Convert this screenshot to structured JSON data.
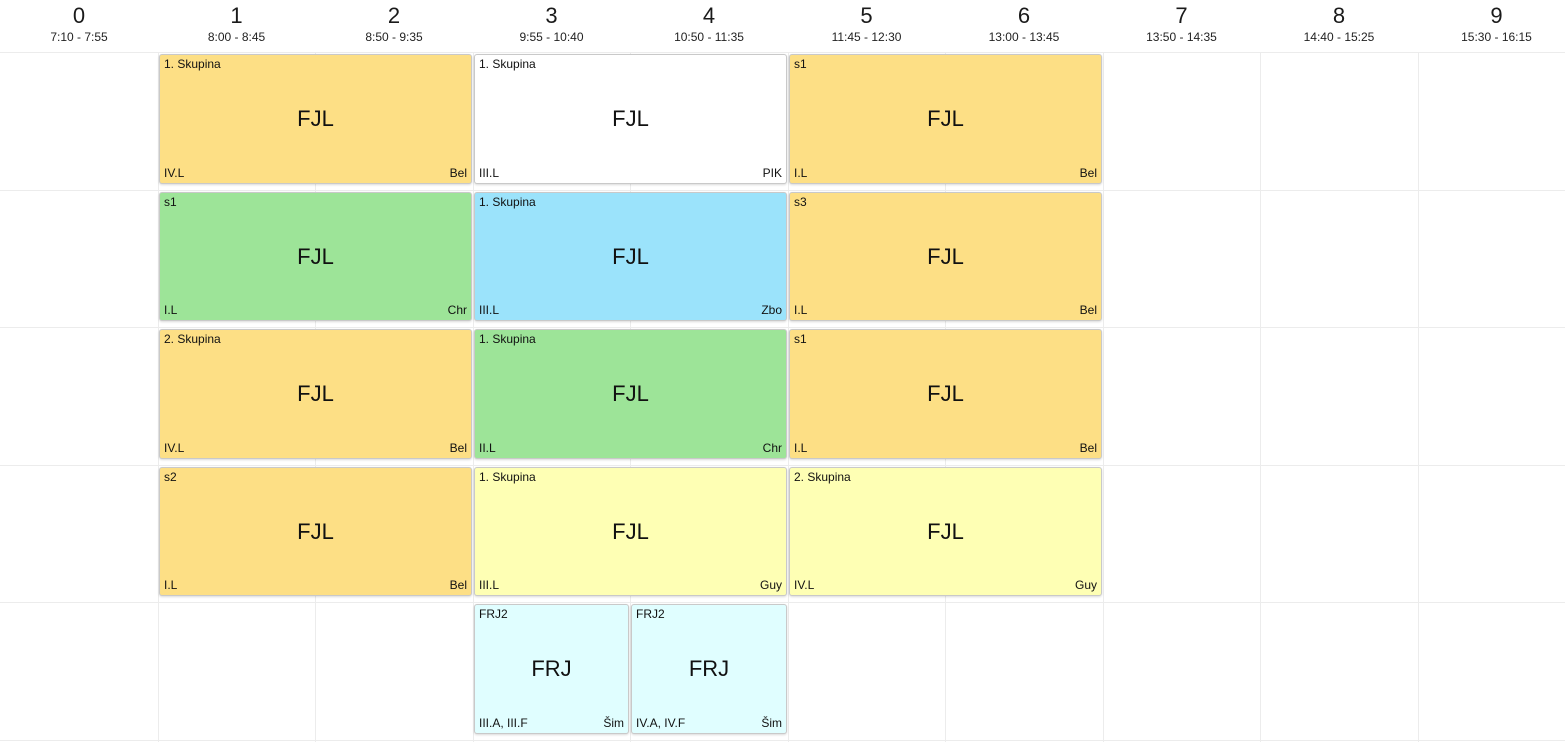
{
  "periods": [
    {
      "num": "0",
      "time": "7:10 - 7:55"
    },
    {
      "num": "1",
      "time": "8:00 - 8:45"
    },
    {
      "num": "2",
      "time": "8:50 - 9:35"
    },
    {
      "num": "3",
      "time": "9:55 - 10:40"
    },
    {
      "num": "4",
      "time": "10:50 - 11:35"
    },
    {
      "num": "5",
      "time": "11:45 - 12:30"
    },
    {
      "num": "6",
      "time": "13:00 - 13:45"
    },
    {
      "num": "7",
      "time": "13:50 - 14:35"
    },
    {
      "num": "8",
      "time": "14:40 - 15:25"
    },
    {
      "num": "9",
      "time": "15:30 - 16:15"
    }
  ],
  "colors": {
    "orange": "#fddf85",
    "white": "#ffffff",
    "green": "#9de498",
    "blue": "#9be3fb",
    "yellow": "#feffb4",
    "lightcyan": "#e0feff"
  },
  "lessons": [
    {
      "row": 0,
      "start": 1,
      "span": 2,
      "color": "orange",
      "group": "1. Skupina",
      "subject": "FJL",
      "classes": "IV.L",
      "teacher": "Bel"
    },
    {
      "row": 0,
      "start": 3,
      "span": 2,
      "color": "white",
      "group": "1. Skupina",
      "subject": "FJL",
      "classes": "III.L",
      "teacher": "PIK"
    },
    {
      "row": 0,
      "start": 5,
      "span": 2,
      "color": "orange",
      "group": "s1",
      "subject": "FJL",
      "classes": "I.L",
      "teacher": "Bel"
    },
    {
      "row": 1,
      "start": 1,
      "span": 2,
      "color": "green",
      "group": "s1",
      "subject": "FJL",
      "classes": "I.L",
      "teacher": "Chr"
    },
    {
      "row": 1,
      "start": 3,
      "span": 2,
      "color": "blue",
      "group": "1. Skupina",
      "subject": "FJL",
      "classes": "III.L",
      "teacher": "Zbo"
    },
    {
      "row": 1,
      "start": 5,
      "span": 2,
      "color": "orange",
      "group": "s3",
      "subject": "FJL",
      "classes": "I.L",
      "teacher": "Bel"
    },
    {
      "row": 2,
      "start": 1,
      "span": 2,
      "color": "orange",
      "group": "2. Skupina",
      "subject": "FJL",
      "classes": "IV.L",
      "teacher": "Bel"
    },
    {
      "row": 2,
      "start": 3,
      "span": 2,
      "color": "green",
      "group": "1. Skupina",
      "subject": "FJL",
      "classes": "II.L",
      "teacher": "Chr"
    },
    {
      "row": 2,
      "start": 5,
      "span": 2,
      "color": "orange",
      "group": "s1",
      "subject": "FJL",
      "classes": "I.L",
      "teacher": "Bel"
    },
    {
      "row": 3,
      "start": 1,
      "span": 2,
      "color": "orange",
      "group": "s2",
      "subject": "FJL",
      "classes": "I.L",
      "teacher": "Bel"
    },
    {
      "row": 3,
      "start": 3,
      "span": 2,
      "color": "yellow",
      "group": "1. Skupina",
      "subject": "FJL",
      "classes": "III.L",
      "teacher": "Guy"
    },
    {
      "row": 3,
      "start": 5,
      "span": 2,
      "color": "yellow",
      "group": "2. Skupina",
      "subject": "FJL",
      "classes": "IV.L",
      "teacher": "Guy"
    },
    {
      "row": 4,
      "start": 3,
      "span": 1,
      "color": "lightcyan",
      "group": "FRJ2",
      "subject": "FRJ",
      "classes": "III.A, III.F",
      "teacher": "Šim"
    },
    {
      "row": 4,
      "start": 4,
      "span": 1,
      "color": "lightcyan",
      "group": "FRJ2",
      "subject": "FRJ",
      "classes": "IV.A, IV.F",
      "teacher": "Šim"
    }
  ]
}
